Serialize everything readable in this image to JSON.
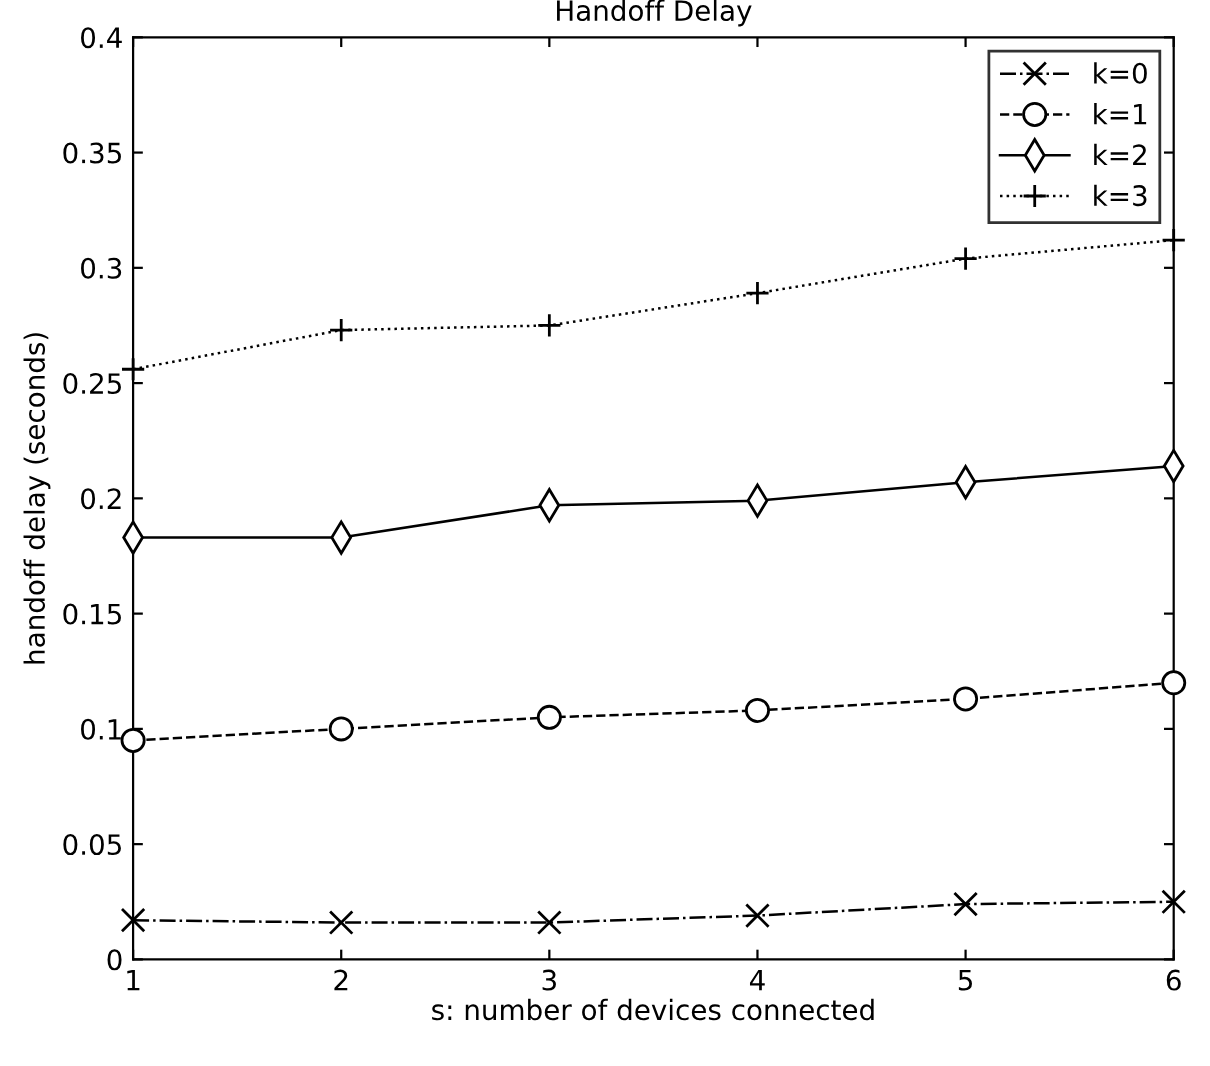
{
  "chart_data": {
    "type": "line",
    "title": "Handoff Delay",
    "xlabel": "s: number of devices connected",
    "ylabel": "handoff delay (seconds)",
    "x": [
      1,
      2,
      3,
      4,
      5,
      6
    ],
    "series": [
      {
        "name": "k=0",
        "color": "#000000",
        "marker": "cross",
        "line_style": "dashdot",
        "values": [
          0.017,
          0.016,
          0.016,
          0.019,
          0.024,
          0.025
        ]
      },
      {
        "name": "k=1",
        "color": "#000000",
        "marker": "circle",
        "line_style": "dashed",
        "values": [
          0.095,
          0.1,
          0.105,
          0.108,
          0.113,
          0.12
        ]
      },
      {
        "name": "k=2",
        "color": "#000000",
        "marker": "diamond",
        "line_style": "solid",
        "values": [
          0.183,
          0.183,
          0.197,
          0.199,
          0.207,
          0.214
        ]
      },
      {
        "name": "k=3",
        "color": "#000000",
        "marker": "plus",
        "line_style": "dotted",
        "values": [
          0.256,
          0.273,
          0.275,
          0.289,
          0.304,
          0.312
        ]
      }
    ],
    "xlim": [
      1,
      6
    ],
    "ylim": [
      0,
      0.4
    ],
    "xticks": [
      1,
      2,
      3,
      4,
      5,
      6
    ],
    "yticks": [
      0,
      0.05,
      0.1,
      0.15,
      0.2,
      0.25,
      0.3,
      0.35,
      0.4
    ],
    "grid": false,
    "legend": "top right"
  }
}
